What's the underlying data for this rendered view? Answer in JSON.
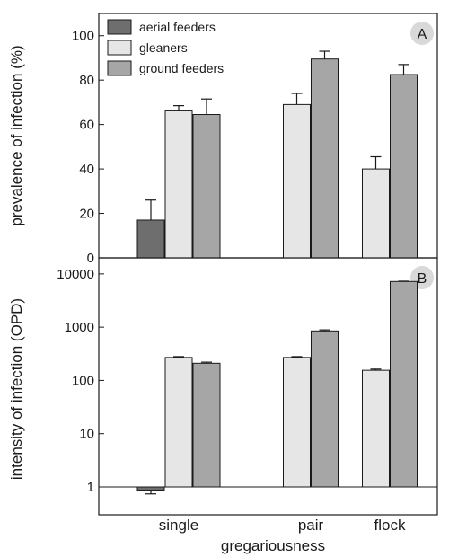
{
  "chart_data": [
    {
      "type": "bar",
      "panel_label": "A",
      "categories": [
        "single",
        "pair",
        "flock"
      ],
      "ylabel": "prevalence of infection (%)",
      "ylim": [
        0,
        110
      ],
      "yticks": [
        0,
        20,
        40,
        60,
        80,
        100
      ],
      "legend": {
        "placement": "top-left"
      },
      "series": [
        {
          "name": "aerial feeders",
          "color": "#6e6e6e",
          "values": [
            17,
            null,
            null
          ],
          "errors": [
            9,
            null,
            null
          ]
        },
        {
          "name": "gleaners",
          "color": "#e6e6e6",
          "values": [
            66.5,
            69,
            40
          ],
          "errors": [
            2,
            5,
            5.5
          ]
        },
        {
          "name": "ground feeders",
          "color": "#a6a6a6",
          "values": [
            64.5,
            89.5,
            82.5
          ],
          "errors": [
            7,
            3.5,
            4.5
          ]
        }
      ]
    },
    {
      "type": "bar",
      "panel_label": "B",
      "categories": [
        "single",
        "pair",
        "flock"
      ],
      "xlabel": "gregariousness",
      "ylabel": "intensity of infection (OPD)",
      "yscale": "log",
      "ylim": [
        0.3,
        20000
      ],
      "yticks": [
        1,
        10,
        100,
        1000,
        10000
      ],
      "series": [
        {
          "name": "aerial feeders",
          "color": "#6e6e6e",
          "values": [
            0.87,
            null,
            null
          ],
          "errors": [
            0.13,
            null,
            null
          ]
        },
        {
          "name": "gleaners",
          "color": "#e6e6e6",
          "values": [
            270,
            270,
            155
          ],
          "errors": [
            10,
            10,
            8
          ]
        },
        {
          "name": "ground feeders",
          "color": "#a6a6a6",
          "values": [
            210,
            850,
            7200
          ],
          "errors": [
            10,
            40,
            100
          ]
        }
      ]
    }
  ]
}
